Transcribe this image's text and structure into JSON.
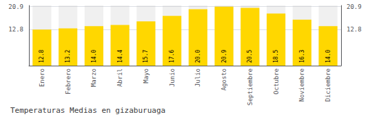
{
  "chart_data": {
    "type": "bar",
    "title": "Temperaturas Medias en gizaburuaga",
    "categories": [
      "Enero",
      "Febrero",
      "Marzo",
      "Abril",
      "Mayo",
      "Junio",
      "Julio",
      "Agosto",
      "Septiembre",
      "Octubre",
      "Noviembre",
      "Diciembre"
    ],
    "values": [
      12.8,
      13.2,
      14.0,
      14.4,
      15.7,
      17.6,
      20.0,
      20.9,
      20.5,
      18.5,
      16.3,
      14.0
    ],
    "value_labels": [
      "12.8",
      "13.2",
      "14.0",
      "14.4",
      "15.7",
      "17.6",
      "20.0",
      "20.9",
      "20.5",
      "18.5",
      "16.3",
      "14.0"
    ],
    "color": "#FFD700",
    "ylim": [
      0,
      21.318
    ],
    "yticks": [
      12.8,
      20.9
    ],
    "y2lim": [
      0,
      21.318
    ],
    "y2ticks": [
      12.8,
      20.9
    ],
    "grid": true,
    "data_labels": true
  }
}
